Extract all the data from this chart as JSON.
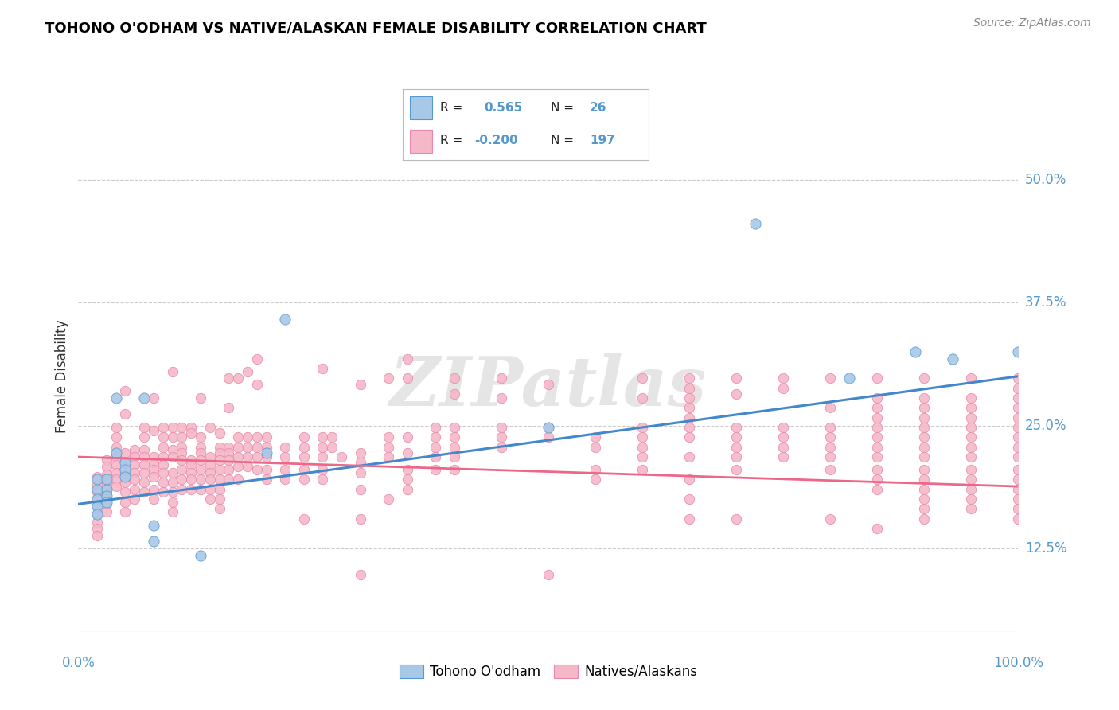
{
  "title": "TOHONO O'ODHAM VS NATIVE/ALASKAN FEMALE DISABILITY CORRELATION CHART",
  "source": "Source: ZipAtlas.com",
  "ylabel": "Female Disability",
  "ytick_labels": [
    "12.5%",
    "25.0%",
    "37.5%",
    "50.0%"
  ],
  "ytick_values": [
    0.125,
    0.25,
    0.375,
    0.5
  ],
  "xlim": [
    0.0,
    1.0
  ],
  "ylim": [
    0.04,
    0.56
  ],
  "blue_color": "#a8c8e8",
  "pink_color": "#f4b8c8",
  "blue_edge_color": "#5599cc",
  "pink_edge_color": "#e888aa",
  "blue_line_color": "#4488cc",
  "pink_line_color": "#ee6688",
  "label_color": "#5599cc",
  "watermark": "ZIPatlas",
  "blue_scatter": [
    [
      0.02,
      0.195
    ],
    [
      0.02,
      0.185
    ],
    [
      0.02,
      0.175
    ],
    [
      0.02,
      0.168
    ],
    [
      0.02,
      0.16
    ],
    [
      0.03,
      0.195
    ],
    [
      0.03,
      0.185
    ],
    [
      0.03,
      0.178
    ],
    [
      0.03,
      0.172
    ],
    [
      0.04,
      0.278
    ],
    [
      0.04,
      0.222
    ],
    [
      0.05,
      0.212
    ],
    [
      0.05,
      0.205
    ],
    [
      0.05,
      0.198
    ],
    [
      0.07,
      0.278
    ],
    [
      0.08,
      0.148
    ],
    [
      0.08,
      0.132
    ],
    [
      0.13,
      0.118
    ],
    [
      0.2,
      0.222
    ],
    [
      0.22,
      0.358
    ],
    [
      0.5,
      0.248
    ],
    [
      0.82,
      0.298
    ],
    [
      0.89,
      0.325
    ],
    [
      1.0,
      0.325
    ],
    [
      0.72,
      0.455
    ],
    [
      0.93,
      0.318
    ]
  ],
  "pink_scatter": [
    [
      0.02,
      0.198
    ],
    [
      0.02,
      0.19
    ],
    [
      0.02,
      0.182
    ],
    [
      0.02,
      0.175
    ],
    [
      0.02,
      0.168
    ],
    [
      0.02,
      0.16
    ],
    [
      0.02,
      0.152
    ],
    [
      0.02,
      0.145
    ],
    [
      0.02,
      0.138
    ],
    [
      0.03,
      0.215
    ],
    [
      0.03,
      0.208
    ],
    [
      0.03,
      0.2
    ],
    [
      0.03,
      0.192
    ],
    [
      0.03,
      0.185
    ],
    [
      0.03,
      0.178
    ],
    [
      0.03,
      0.17
    ],
    [
      0.03,
      0.162
    ],
    [
      0.04,
      0.248
    ],
    [
      0.04,
      0.238
    ],
    [
      0.04,
      0.228
    ],
    [
      0.04,
      0.218
    ],
    [
      0.04,
      0.21
    ],
    [
      0.04,
      0.202
    ],
    [
      0.04,
      0.195
    ],
    [
      0.04,
      0.188
    ],
    [
      0.05,
      0.285
    ],
    [
      0.05,
      0.262
    ],
    [
      0.05,
      0.222
    ],
    [
      0.05,
      0.212
    ],
    [
      0.05,
      0.202
    ],
    [
      0.05,
      0.192
    ],
    [
      0.05,
      0.182
    ],
    [
      0.05,
      0.172
    ],
    [
      0.05,
      0.162
    ],
    [
      0.06,
      0.225
    ],
    [
      0.06,
      0.218
    ],
    [
      0.06,
      0.21
    ],
    [
      0.06,
      0.202
    ],
    [
      0.06,
      0.195
    ],
    [
      0.06,
      0.185
    ],
    [
      0.06,
      0.175
    ],
    [
      0.07,
      0.248
    ],
    [
      0.07,
      0.238
    ],
    [
      0.07,
      0.225
    ],
    [
      0.07,
      0.218
    ],
    [
      0.07,
      0.21
    ],
    [
      0.07,
      0.202
    ],
    [
      0.07,
      0.192
    ],
    [
      0.07,
      0.182
    ],
    [
      0.08,
      0.278
    ],
    [
      0.08,
      0.245
    ],
    [
      0.08,
      0.218
    ],
    [
      0.08,
      0.212
    ],
    [
      0.08,
      0.205
    ],
    [
      0.08,
      0.198
    ],
    [
      0.08,
      0.185
    ],
    [
      0.08,
      0.175
    ],
    [
      0.09,
      0.248
    ],
    [
      0.09,
      0.238
    ],
    [
      0.09,
      0.228
    ],
    [
      0.09,
      0.218
    ],
    [
      0.09,
      0.21
    ],
    [
      0.09,
      0.202
    ],
    [
      0.09,
      0.192
    ],
    [
      0.09,
      0.182
    ],
    [
      0.1,
      0.305
    ],
    [
      0.1,
      0.248
    ],
    [
      0.1,
      0.238
    ],
    [
      0.1,
      0.225
    ],
    [
      0.1,
      0.218
    ],
    [
      0.1,
      0.202
    ],
    [
      0.1,
      0.192
    ],
    [
      0.1,
      0.182
    ],
    [
      0.1,
      0.172
    ],
    [
      0.1,
      0.162
    ],
    [
      0.11,
      0.248
    ],
    [
      0.11,
      0.238
    ],
    [
      0.11,
      0.228
    ],
    [
      0.11,
      0.222
    ],
    [
      0.11,
      0.215
    ],
    [
      0.11,
      0.205
    ],
    [
      0.11,
      0.195
    ],
    [
      0.11,
      0.185
    ],
    [
      0.12,
      0.248
    ],
    [
      0.12,
      0.242
    ],
    [
      0.12,
      0.215
    ],
    [
      0.12,
      0.21
    ],
    [
      0.12,
      0.202
    ],
    [
      0.12,
      0.195
    ],
    [
      0.12,
      0.185
    ],
    [
      0.13,
      0.278
    ],
    [
      0.13,
      0.238
    ],
    [
      0.13,
      0.228
    ],
    [
      0.13,
      0.222
    ],
    [
      0.13,
      0.215
    ],
    [
      0.13,
      0.205
    ],
    [
      0.13,
      0.195
    ],
    [
      0.13,
      0.185
    ],
    [
      0.14,
      0.248
    ],
    [
      0.14,
      0.218
    ],
    [
      0.14,
      0.21
    ],
    [
      0.14,
      0.202
    ],
    [
      0.14,
      0.195
    ],
    [
      0.14,
      0.185
    ],
    [
      0.14,
      0.175
    ],
    [
      0.15,
      0.242
    ],
    [
      0.15,
      0.228
    ],
    [
      0.15,
      0.222
    ],
    [
      0.15,
      0.215
    ],
    [
      0.15,
      0.205
    ],
    [
      0.15,
      0.195
    ],
    [
      0.15,
      0.185
    ],
    [
      0.15,
      0.175
    ],
    [
      0.15,
      0.165
    ],
    [
      0.16,
      0.298
    ],
    [
      0.16,
      0.268
    ],
    [
      0.16,
      0.228
    ],
    [
      0.16,
      0.222
    ],
    [
      0.16,
      0.215
    ],
    [
      0.16,
      0.205
    ],
    [
      0.16,
      0.195
    ],
    [
      0.17,
      0.298
    ],
    [
      0.17,
      0.238
    ],
    [
      0.17,
      0.228
    ],
    [
      0.17,
      0.218
    ],
    [
      0.17,
      0.208
    ],
    [
      0.17,
      0.195
    ],
    [
      0.18,
      0.305
    ],
    [
      0.18,
      0.238
    ],
    [
      0.18,
      0.228
    ],
    [
      0.18,
      0.218
    ],
    [
      0.18,
      0.208
    ],
    [
      0.19,
      0.318
    ],
    [
      0.19,
      0.292
    ],
    [
      0.19,
      0.238
    ],
    [
      0.19,
      0.228
    ],
    [
      0.19,
      0.218
    ],
    [
      0.19,
      0.205
    ],
    [
      0.2,
      0.238
    ],
    [
      0.2,
      0.228
    ],
    [
      0.2,
      0.218
    ],
    [
      0.2,
      0.205
    ],
    [
      0.2,
      0.195
    ],
    [
      0.22,
      0.228
    ],
    [
      0.22,
      0.218
    ],
    [
      0.22,
      0.205
    ],
    [
      0.22,
      0.195
    ],
    [
      0.24,
      0.238
    ],
    [
      0.24,
      0.228
    ],
    [
      0.24,
      0.218
    ],
    [
      0.24,
      0.205
    ],
    [
      0.24,
      0.195
    ],
    [
      0.24,
      0.155
    ],
    [
      0.26,
      0.308
    ],
    [
      0.26,
      0.238
    ],
    [
      0.26,
      0.228
    ],
    [
      0.26,
      0.218
    ],
    [
      0.26,
      0.205
    ],
    [
      0.26,
      0.195
    ],
    [
      0.27,
      0.238
    ],
    [
      0.27,
      0.228
    ],
    [
      0.28,
      0.218
    ],
    [
      0.3,
      0.292
    ],
    [
      0.3,
      0.222
    ],
    [
      0.3,
      0.212
    ],
    [
      0.3,
      0.202
    ],
    [
      0.3,
      0.185
    ],
    [
      0.3,
      0.155
    ],
    [
      0.3,
      0.098
    ],
    [
      0.33,
      0.298
    ],
    [
      0.33,
      0.238
    ],
    [
      0.33,
      0.228
    ],
    [
      0.33,
      0.218
    ],
    [
      0.33,
      0.175
    ],
    [
      0.35,
      0.318
    ],
    [
      0.35,
      0.298
    ],
    [
      0.35,
      0.238
    ],
    [
      0.35,
      0.222
    ],
    [
      0.35,
      0.205
    ],
    [
      0.35,
      0.195
    ],
    [
      0.35,
      0.185
    ],
    [
      0.38,
      0.248
    ],
    [
      0.38,
      0.238
    ],
    [
      0.38,
      0.228
    ],
    [
      0.38,
      0.218
    ],
    [
      0.38,
      0.205
    ],
    [
      0.4,
      0.298
    ],
    [
      0.4,
      0.282
    ],
    [
      0.4,
      0.248
    ],
    [
      0.4,
      0.238
    ],
    [
      0.4,
      0.228
    ],
    [
      0.4,
      0.218
    ],
    [
      0.4,
      0.205
    ],
    [
      0.45,
      0.298
    ],
    [
      0.45,
      0.278
    ],
    [
      0.45,
      0.248
    ],
    [
      0.45,
      0.238
    ],
    [
      0.45,
      0.228
    ],
    [
      0.5,
      0.292
    ],
    [
      0.5,
      0.248
    ],
    [
      0.5,
      0.238
    ],
    [
      0.5,
      0.098
    ],
    [
      0.55,
      0.238
    ],
    [
      0.55,
      0.228
    ],
    [
      0.55,
      0.205
    ],
    [
      0.55,
      0.195
    ],
    [
      0.6,
      0.298
    ],
    [
      0.6,
      0.278
    ],
    [
      0.6,
      0.248
    ],
    [
      0.6,
      0.238
    ],
    [
      0.6,
      0.228
    ],
    [
      0.6,
      0.218
    ],
    [
      0.6,
      0.205
    ],
    [
      0.65,
      0.298
    ],
    [
      0.65,
      0.288
    ],
    [
      0.65,
      0.278
    ],
    [
      0.65,
      0.268
    ],
    [
      0.65,
      0.258
    ],
    [
      0.65,
      0.248
    ],
    [
      0.65,
      0.238
    ],
    [
      0.65,
      0.218
    ],
    [
      0.65,
      0.195
    ],
    [
      0.65,
      0.175
    ],
    [
      0.65,
      0.155
    ],
    [
      0.7,
      0.298
    ],
    [
      0.7,
      0.282
    ],
    [
      0.7,
      0.248
    ],
    [
      0.7,
      0.238
    ],
    [
      0.7,
      0.228
    ],
    [
      0.7,
      0.218
    ],
    [
      0.7,
      0.205
    ],
    [
      0.7,
      0.155
    ],
    [
      0.75,
      0.298
    ],
    [
      0.75,
      0.288
    ],
    [
      0.75,
      0.248
    ],
    [
      0.75,
      0.238
    ],
    [
      0.75,
      0.228
    ],
    [
      0.75,
      0.218
    ],
    [
      0.8,
      0.298
    ],
    [
      0.8,
      0.268
    ],
    [
      0.8,
      0.248
    ],
    [
      0.8,
      0.238
    ],
    [
      0.8,
      0.228
    ],
    [
      0.8,
      0.218
    ],
    [
      0.8,
      0.205
    ],
    [
      0.8,
      0.155
    ],
    [
      0.85,
      0.298
    ],
    [
      0.85,
      0.278
    ],
    [
      0.85,
      0.268
    ],
    [
      0.85,
      0.258
    ],
    [
      0.85,
      0.248
    ],
    [
      0.85,
      0.238
    ],
    [
      0.85,
      0.228
    ],
    [
      0.85,
      0.218
    ],
    [
      0.85,
      0.205
    ],
    [
      0.85,
      0.195
    ],
    [
      0.85,
      0.185
    ],
    [
      0.85,
      0.145
    ],
    [
      0.9,
      0.298
    ],
    [
      0.9,
      0.278
    ],
    [
      0.9,
      0.268
    ],
    [
      0.9,
      0.258
    ],
    [
      0.9,
      0.248
    ],
    [
      0.9,
      0.238
    ],
    [
      0.9,
      0.228
    ],
    [
      0.9,
      0.218
    ],
    [
      0.9,
      0.205
    ],
    [
      0.9,
      0.195
    ],
    [
      0.9,
      0.185
    ],
    [
      0.9,
      0.175
    ],
    [
      0.9,
      0.165
    ],
    [
      0.9,
      0.155
    ],
    [
      0.95,
      0.298
    ],
    [
      0.95,
      0.278
    ],
    [
      0.95,
      0.268
    ],
    [
      0.95,
      0.258
    ],
    [
      0.95,
      0.248
    ],
    [
      0.95,
      0.238
    ],
    [
      0.95,
      0.228
    ],
    [
      0.95,
      0.218
    ],
    [
      0.95,
      0.205
    ],
    [
      0.95,
      0.195
    ],
    [
      0.95,
      0.185
    ],
    [
      0.95,
      0.175
    ],
    [
      0.95,
      0.165
    ],
    [
      1.0,
      0.298
    ],
    [
      1.0,
      0.288
    ],
    [
      1.0,
      0.278
    ],
    [
      1.0,
      0.268
    ],
    [
      1.0,
      0.258
    ],
    [
      1.0,
      0.248
    ],
    [
      1.0,
      0.238
    ],
    [
      1.0,
      0.228
    ],
    [
      1.0,
      0.218
    ],
    [
      1.0,
      0.205
    ],
    [
      1.0,
      0.195
    ],
    [
      1.0,
      0.185
    ],
    [
      1.0,
      0.175
    ],
    [
      1.0,
      0.165
    ],
    [
      1.0,
      0.155
    ]
  ],
  "blue_trendline_x": [
    0.0,
    1.0
  ],
  "blue_trendline_y": [
    0.17,
    0.3
  ],
  "pink_trendline_x": [
    0.0,
    1.0
  ],
  "pink_trendline_y": [
    0.218,
    0.188
  ],
  "background_color": "#ffffff",
  "grid_color": "#cccccc"
}
